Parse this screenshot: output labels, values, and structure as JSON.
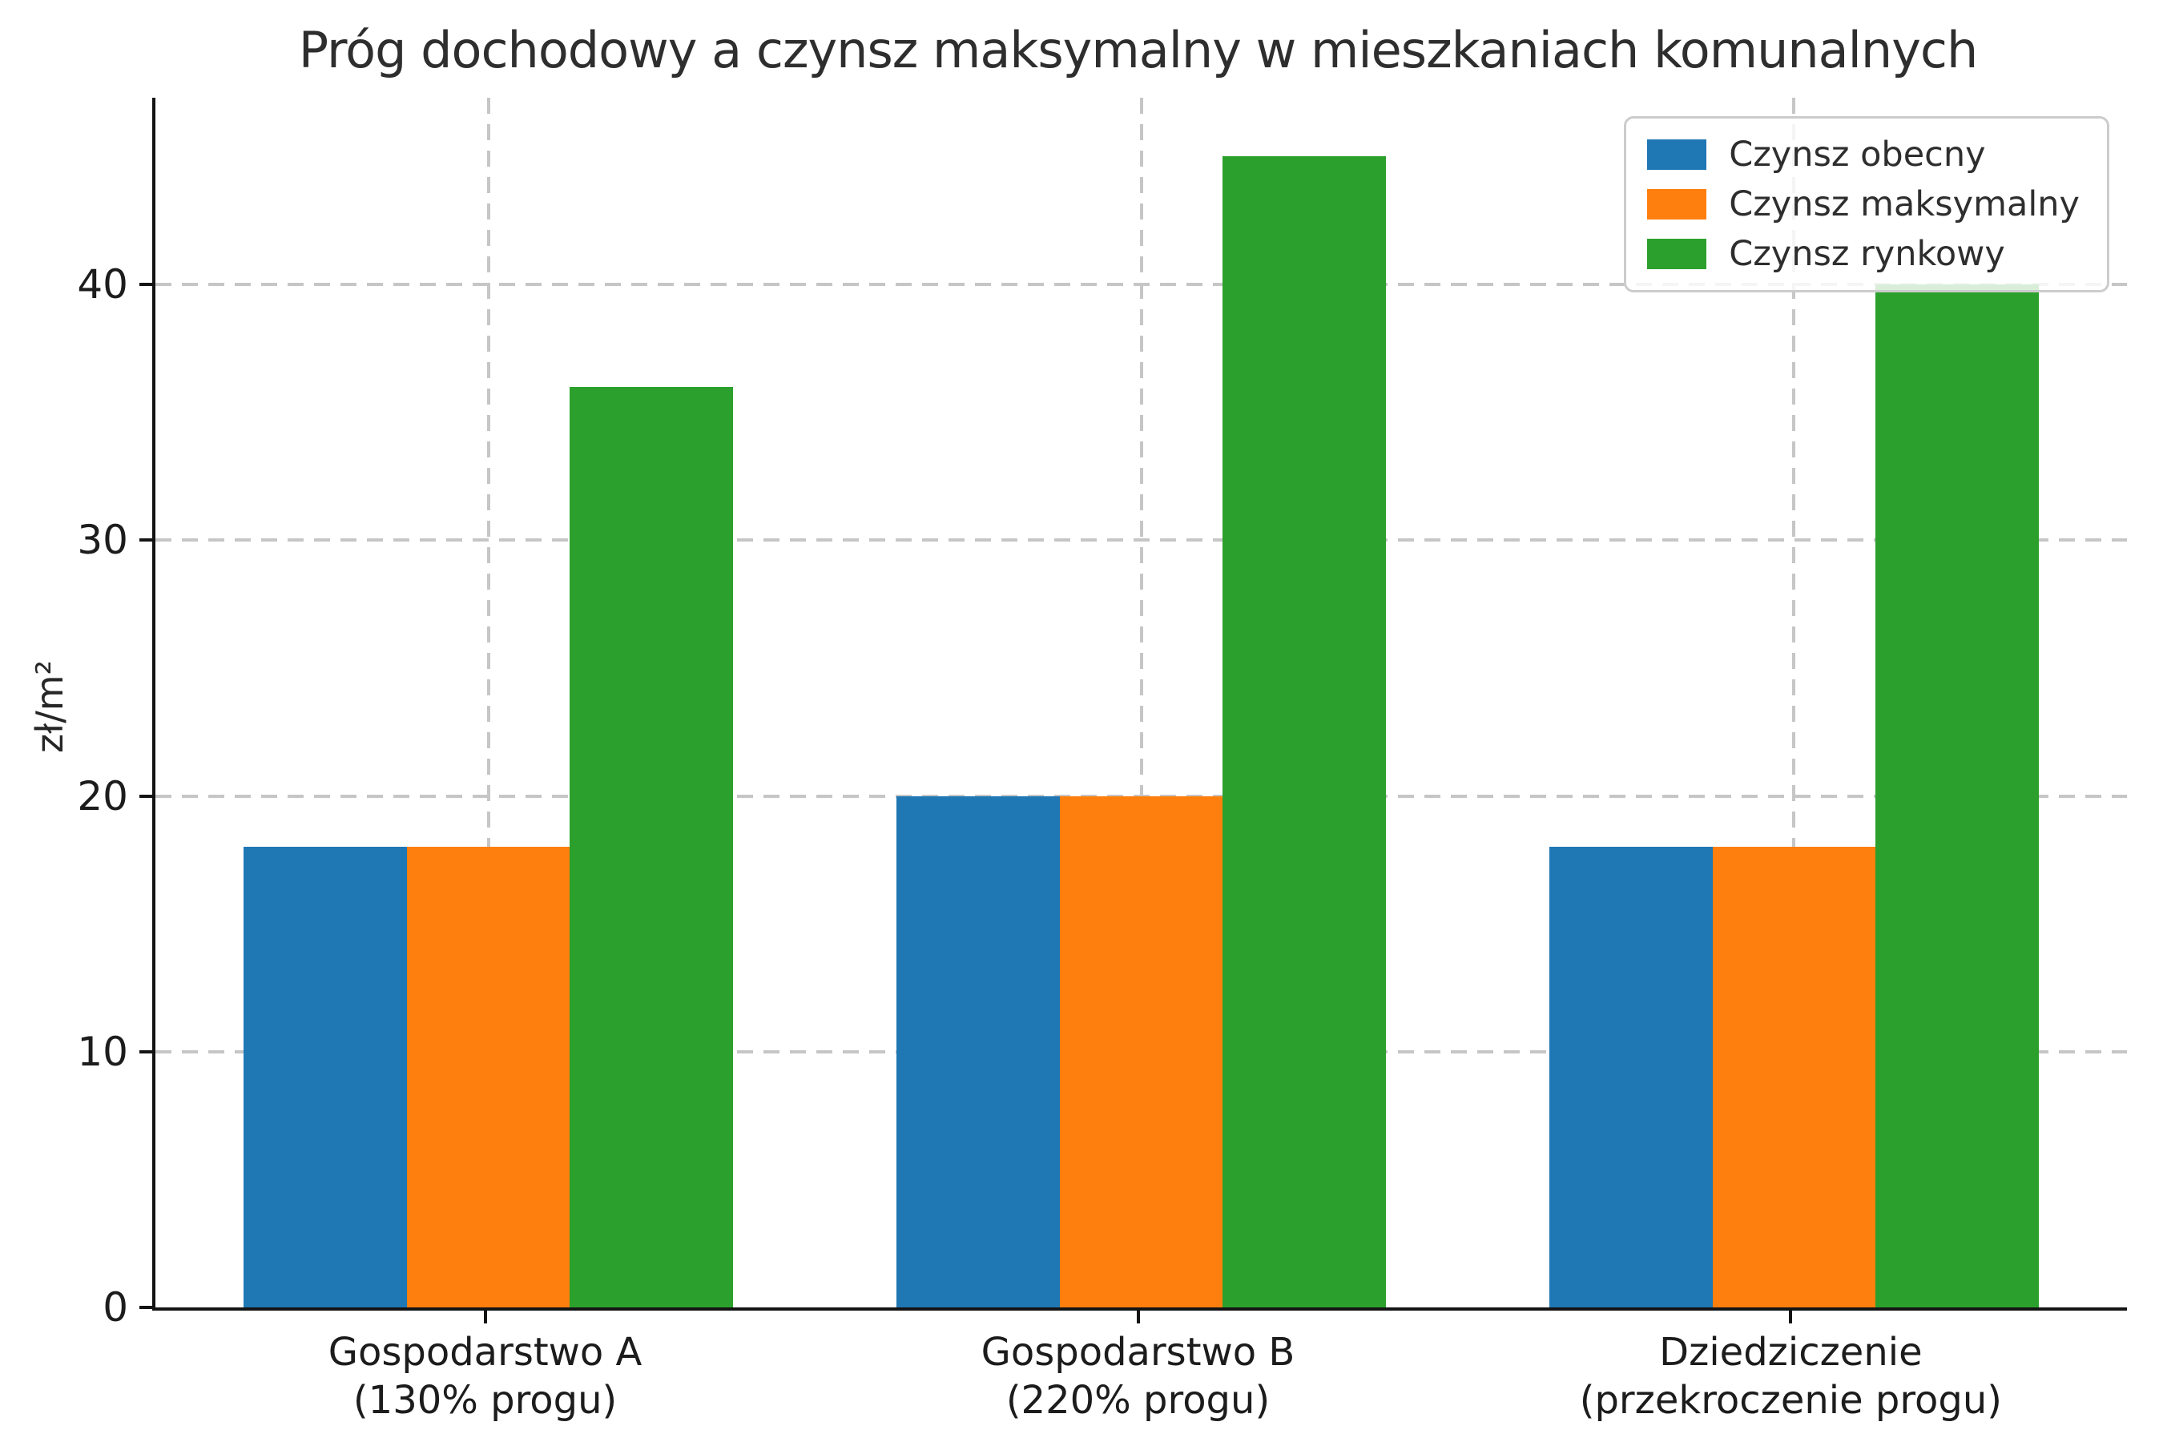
{
  "chart_data": {
    "type": "bar",
    "title": "Próg dochodowy a czynsz maksymalny w mieszkaniach komunalnych",
    "ylabel": "zł/m²",
    "xlabel": "",
    "categories": [
      {
        "label": "Gospodarstwo A",
        "sublabel": "(130% progu)"
      },
      {
        "label": "Gospodarstwo B",
        "sublabel": "(220% progu)"
      },
      {
        "label": "Dziedziczenie",
        "sublabel": "(przekroczenie progu)"
      }
    ],
    "series": [
      {
        "name": "Czynsz obecny",
        "color": "#1f77b4",
        "values": [
          18,
          20,
          18
        ]
      },
      {
        "name": "Czynsz maksymalny",
        "color": "#ff7f0e",
        "values": [
          18,
          20,
          18
        ]
      },
      {
        "name": "Czynsz rynkowy",
        "color": "#2ca02c",
        "values": [
          36,
          45,
          40
        ]
      }
    ],
    "yticks": [
      0,
      10,
      20,
      30,
      40
    ],
    "ylim": [
      0,
      47.3
    ],
    "grid": true,
    "grid_style": "dashed",
    "legend_position": "upper-right",
    "bar_width_fraction": 0.25,
    "axis_color": "#141414",
    "gridline_color": "#c6c6c6"
  }
}
